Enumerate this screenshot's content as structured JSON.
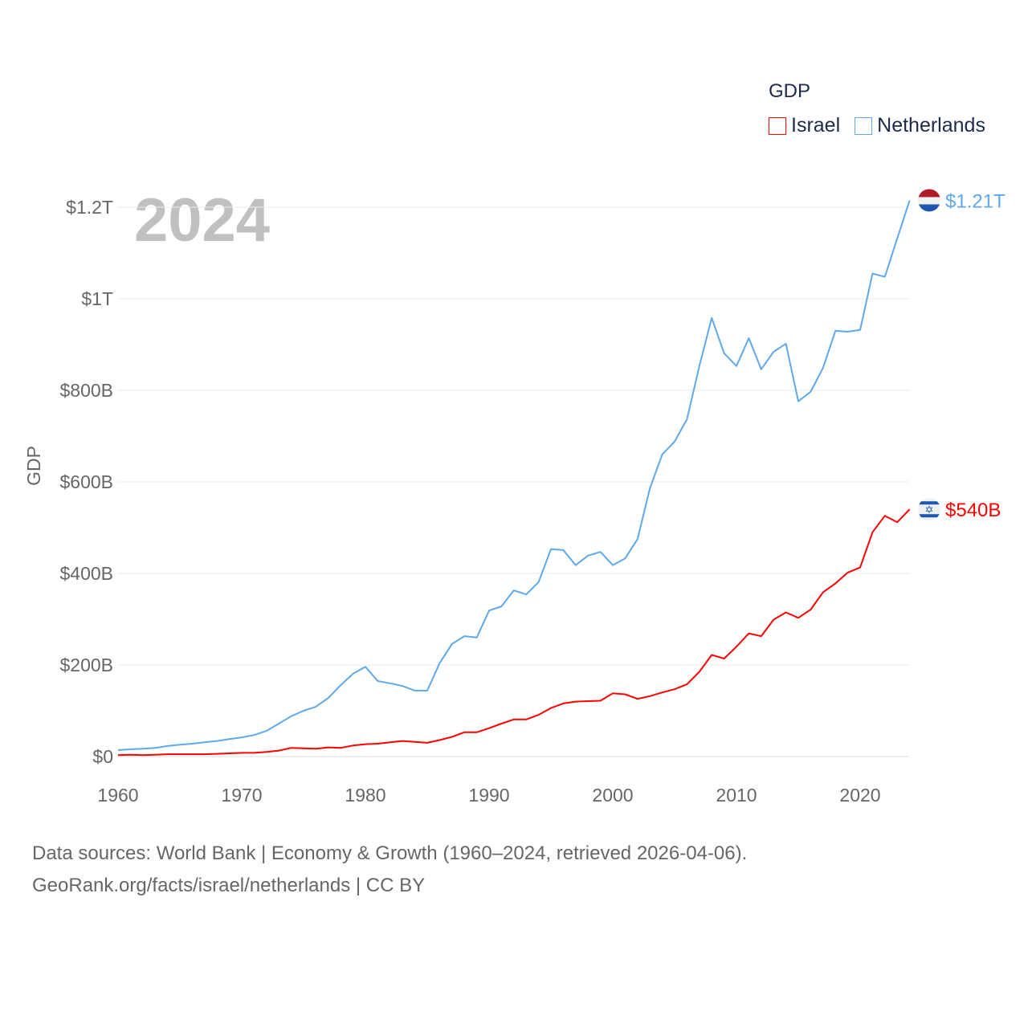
{
  "chart_data": {
    "type": "line",
    "title": "GDP",
    "year_label": "2024",
    "ylabel": "GDP",
    "xlabel": "",
    "xlim": [
      1960,
      2024
    ],
    "ylim": [
      0,
      1250
    ],
    "y_unit": "billion USD",
    "x_ticks": [
      "1960",
      "1970",
      "1980",
      "1990",
      "2000",
      "2010",
      "2020"
    ],
    "y_ticks": [
      {
        "v": 0,
        "label": "$0"
      },
      {
        "v": 200,
        "label": "$200B"
      },
      {
        "v": 400,
        "label": "$400B"
      },
      {
        "v": 600,
        "label": "$600B"
      },
      {
        "v": 800,
        "label": "$800B"
      },
      {
        "v": 1000,
        "label": "$1T"
      },
      {
        "v": 1200,
        "label": "$1.2T"
      }
    ],
    "grid": true,
    "legend_placement": "top-right",
    "series": [
      {
        "name": "Israel",
        "color": "#ff0000",
        "end_label": "$540B",
        "flag": "israel-flag",
        "values": [
          3,
          4,
          3,
          4,
          5,
          5,
          5,
          5,
          6,
          7,
          8,
          8,
          10,
          13,
          19,
          18,
          17,
          20,
          19,
          24,
          27,
          28,
          31,
          34,
          32,
          30,
          36,
          43,
          53,
          53,
          62,
          72,
          81,
          81,
          91,
          106,
          116,
          120,
          121,
          122,
          138,
          136,
          126,
          132,
          140,
          147,
          158,
          185,
          222,
          214,
          240,
          269,
          263,
          299,
          315,
          303,
          321,
          359,
          378,
          402,
          413,
          490,
          526,
          512,
          540
        ]
      },
      {
        "name": "Netherlands",
        "color": "#5fa8ec",
        "end_label": "$1.21T",
        "flag": "netherlands-flag",
        "values": [
          14,
          16,
          17,
          19,
          23,
          26,
          28,
          31,
          34,
          38,
          42,
          47,
          56,
          72,
          88,
          100,
          109,
          128,
          156,
          181,
          196,
          165,
          160,
          154,
          144,
          144,
          204,
          246,
          263,
          260,
          319,
          328,
          363,
          354,
          381,
          453,
          451,
          418,
          439,
          447,
          418,
          433,
          475,
          586,
          660,
          688,
          737,
          853,
          958,
          881,
          853,
          914,
          846,
          884,
          902,
          776,
          797,
          849,
          930,
          928,
          932,
          1055,
          1048,
          1132,
          1215
        ]
      }
    ]
  },
  "footer": {
    "line1": "Data sources: World Bank | Economy & Growth (1960–2024, retrieved 2026-04-06).",
    "line2": "GeoRank.org/facts/israel/netherlands | CC BY"
  }
}
